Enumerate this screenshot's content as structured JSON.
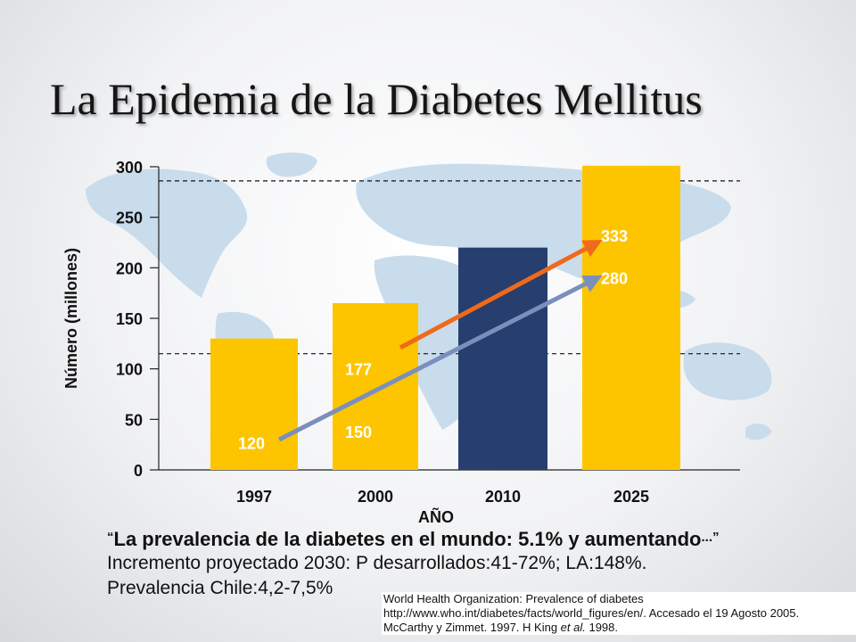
{
  "title": "La Epidemia de la Diabetes Mellitus",
  "chart_data": {
    "type": "bar",
    "categories": [
      "1997",
      "2000",
      "2010",
      "2025"
    ],
    "values": [
      130,
      165,
      220,
      301
    ],
    "bar_colors": [
      "#fdc500",
      "#fdc500",
      "#263f6e",
      "#fdc500"
    ],
    "ylabel": "Número (millones)",
    "xlabel": "AÑO",
    "ylim": [
      0,
      300
    ],
    "yticks": [
      0,
      50,
      100,
      150,
      200,
      250,
      300
    ],
    "reference_lines": [
      115,
      286
    ],
    "arrows": [
      {
        "from": {
          "x": "1997",
          "y": 30
        },
        "to": {
          "x": "2025",
          "y": 190
        },
        "color": "#7b8fbd"
      },
      {
        "from": {
          "x": "2000",
          "y": 121
        },
        "to": {
          "x": "2025",
          "y": 225
        },
        "color": "#ef6a1c"
      }
    ],
    "annotations": [
      {
        "text": "120",
        "x": "1997",
        "y": 27
      },
      {
        "text": "150",
        "x": "2000",
        "y": 38
      },
      {
        "text": "177",
        "x": "2000",
        "y": 100
      },
      {
        "text": "333",
        "x": "2025",
        "y": 232
      },
      {
        "text": "280",
        "x": "2025",
        "y": 190
      }
    ]
  },
  "quote": {
    "open_mark": "“",
    "text": "La prevalencia de la diabetes en el mundo: 5.1% y aumentando",
    "ellipsis": "...",
    "close_mark": "”"
  },
  "stats": [
    "Incremento proyectado 2030: P desarrollados:41-72%; LA:148%.",
    "Prevalencia  Chile:4,2-7,5%"
  ],
  "references": {
    "line1": "World Health Organization: Prevalence of diabetes",
    "line2": "http://www.who.int/diabetes/facts/world_figures/en/. Accesado el 19 Agosto 2005.",
    "line3_a": "McCarthy y Zimmet. 1997. H King ",
    "line3_em": "et al.",
    "line3_b": " 1998."
  },
  "colors": {
    "bar_yellow": "#fdc500",
    "bar_navy": "#263f6e",
    "map": "#c9dcec",
    "arrow_orange": "#ef6a1c",
    "arrow_blue": "#7b8fbd"
  }
}
